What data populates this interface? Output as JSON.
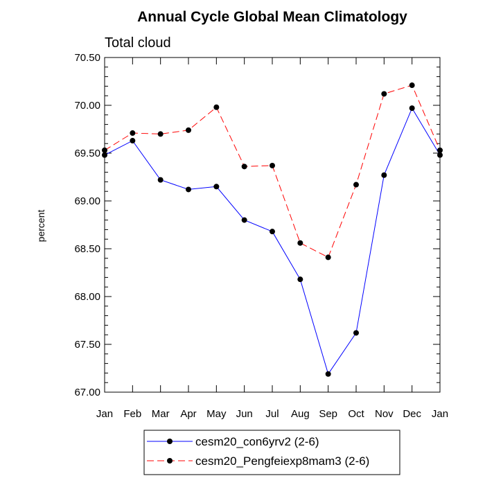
{
  "chart_data": {
    "type": "line",
    "title": "Annual Cycle Global Mean Climatology",
    "subtitle": "Total cloud",
    "xlabel": "",
    "ylabel": "percent",
    "categories": [
      "Jan",
      "Feb",
      "Mar",
      "Apr",
      "May",
      "Jun",
      "Jul",
      "Aug",
      "Sep",
      "Oct",
      "Nov",
      "Dec",
      "Jan"
    ],
    "ylim": [
      67.0,
      70.5
    ],
    "yticks": [
      "67.00",
      "67.50",
      "68.00",
      "68.50",
      "69.00",
      "69.50",
      "70.00",
      "70.50"
    ],
    "grid": false,
    "legend_position": "bottom",
    "series": [
      {
        "name": "cesm20_con6yrv2 (2-6)",
        "color": "#0000ff",
        "dash": "solid",
        "values": [
          69.48,
          69.63,
          69.22,
          69.12,
          69.15,
          68.8,
          68.68,
          68.18,
          67.19,
          67.62,
          69.27,
          69.97,
          69.48
        ]
      },
      {
        "name": "cesm20_Pengfeiexp8mam3 (2-6)",
        "color": "#ff0000",
        "dash": "dashed",
        "values": [
          69.53,
          69.71,
          69.7,
          69.74,
          69.98,
          69.36,
          69.37,
          68.56,
          68.41,
          69.17,
          70.12,
          70.21,
          69.53
        ]
      }
    ]
  }
}
